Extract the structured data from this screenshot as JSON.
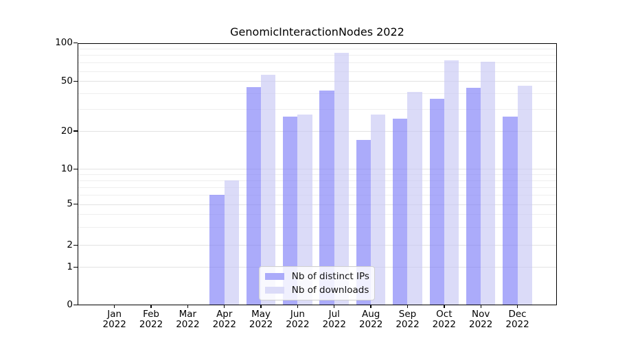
{
  "chart_data": {
    "type": "bar",
    "title": "GenomicInteractionNodes 2022",
    "months": [
      "Jan",
      "Feb",
      "Mar",
      "Apr",
      "May",
      "Jun",
      "Jul",
      "Aug",
      "Sep",
      "Oct",
      "Nov",
      "Dec"
    ],
    "year": "2022",
    "series": [
      {
        "name": "Nb of distinct IPs",
        "color": "#ababfa",
        "fill": "rgba(126,126,247,0.65)",
        "values": [
          0,
          0,
          0,
          6,
          45,
          26,
          42,
          17,
          25,
          36,
          44,
          26
        ]
      },
      {
        "name": "Nb of downloads",
        "color": "#dbdbf8",
        "fill": "rgba(200,200,244,0.65)",
        "values": [
          0,
          0,
          0,
          8,
          56,
          27,
          84,
          27,
          41,
          73,
          71,
          46
        ]
      }
    ],
    "yticks": [
      0,
      1,
      2,
      5,
      10,
      20,
      50,
      100
    ],
    "ylim": [
      0,
      100
    ],
    "yscale": "symlog",
    "grid": {
      "show": true,
      "major_color": "#e2e2e2",
      "minor_color": "#eeeeee",
      "major_values": [
        1,
        2,
        5,
        10,
        20,
        50
      ],
      "minor_values": [
        3,
        4,
        6,
        7,
        8,
        9,
        30,
        40,
        60,
        70,
        80,
        90
      ]
    },
    "legend_position": "lower center",
    "axis_color": "#000000",
    "background": "#ffffff"
  }
}
